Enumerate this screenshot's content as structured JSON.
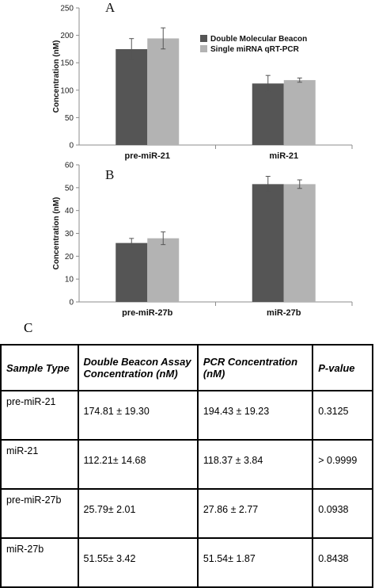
{
  "chart_data": [
    {
      "type": "bar",
      "panel_label": "A",
      "categories": [
        "pre-miR-21",
        "miR-21"
      ],
      "series": [
        {
          "name": "Double Molecular Beacon",
          "values": [
            174.81,
            112.21
          ],
          "errors": [
            19.3,
            14.68
          ]
        },
        {
          "name": "Single miRNA qRT-PCR",
          "values": [
            194.43,
            118.37
          ],
          "errors": [
            19.23,
            3.84
          ]
        }
      ],
      "ylabel": "Concentration (nM)",
      "xlabel": "",
      "ylim": [
        0,
        250
      ],
      "yticks": [
        "0",
        "50",
        "100",
        "150",
        "200",
        "250"
      ],
      "legend_position": "top-right"
    },
    {
      "type": "bar",
      "panel_label": "B",
      "categories": [
        "pre-miR-27b",
        "miR-27b"
      ],
      "series": [
        {
          "name": "Double Molecular Beacon",
          "values": [
            25.79,
            51.55
          ],
          "errors": [
            2.01,
            3.42
          ]
        },
        {
          "name": "Single miRNA qRT-PCR",
          "values": [
            27.86,
            51.54
          ],
          "errors": [
            2.77,
            1.87
          ]
        }
      ],
      "ylabel": "Concentration (nM)",
      "xlabel": "",
      "ylim": [
        0,
        60
      ],
      "yticks": [
        "0",
        "10",
        "20",
        "30",
        "40",
        "50",
        "60"
      ]
    }
  ],
  "colors": {
    "series_1": "#555555",
    "series_2": "#b3b3b3",
    "axis": "#8c8c8c",
    "error_bar": "#555555"
  },
  "table": {
    "panel_label": "C",
    "headers": [
      "Sample Type",
      "Double Beacon Assay Concentration (nM)",
      "PCR Concentration (nM)",
      "P-value"
    ],
    "rows": [
      [
        "pre-miR-21",
        "174.81 ± 19.30",
        "194.43 ± 19.23",
        "0.3125"
      ],
      [
        "miR-21",
        "112.21± 14.68",
        "118.37 ± 3.84",
        "> 0.9999"
      ],
      [
        "pre-miR-27b",
        "25.79± 2.01",
        "27.86 ± 2.77",
        "0.0938"
      ],
      [
        "miR-27b",
        "51.55± 3.42",
        "51.54± 1.87",
        "0.8438"
      ]
    ]
  }
}
